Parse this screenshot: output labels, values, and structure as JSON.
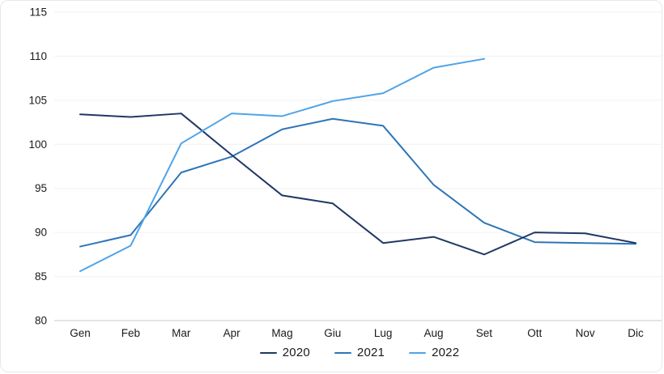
{
  "chart_data": {
    "type": "line",
    "title": "",
    "xlabel": "",
    "ylabel": "",
    "categories": [
      "Gen",
      "Feb",
      "Mar",
      "Apr",
      "Mag",
      "Giu",
      "Lug",
      "Aug",
      "Set",
      "Ott",
      "Nov",
      "Dic"
    ],
    "series": [
      {
        "name": "2020",
        "color": "#1F3864",
        "values": [
          103.4,
          103.1,
          103.5,
          98.8,
          94.2,
          93.3,
          88.8,
          89.5,
          87.5,
          90.0,
          89.9,
          88.8
        ]
      },
      {
        "name": "2021",
        "color": "#2E75B6",
        "values": [
          88.4,
          89.7,
          96.8,
          98.6,
          101.7,
          102.9,
          102.1,
          95.4,
          91.1,
          88.9,
          88.8,
          88.7
        ]
      },
      {
        "name": "2022",
        "color": "#4FA3E8",
        "values": [
          85.6,
          88.5,
          100.1,
          103.5,
          103.2,
          104.9,
          105.8,
          108.7,
          109.7
        ]
      }
    ],
    "ylim": [
      80,
      115
    ],
    "yticks": [
      80,
      85,
      90,
      95,
      100,
      105,
      110,
      115
    ],
    "grid": "horizontal",
    "gridline_color": "#f0f0f0",
    "axis_line_color": "#c9c9c9",
    "legend_position": "bottom"
  }
}
